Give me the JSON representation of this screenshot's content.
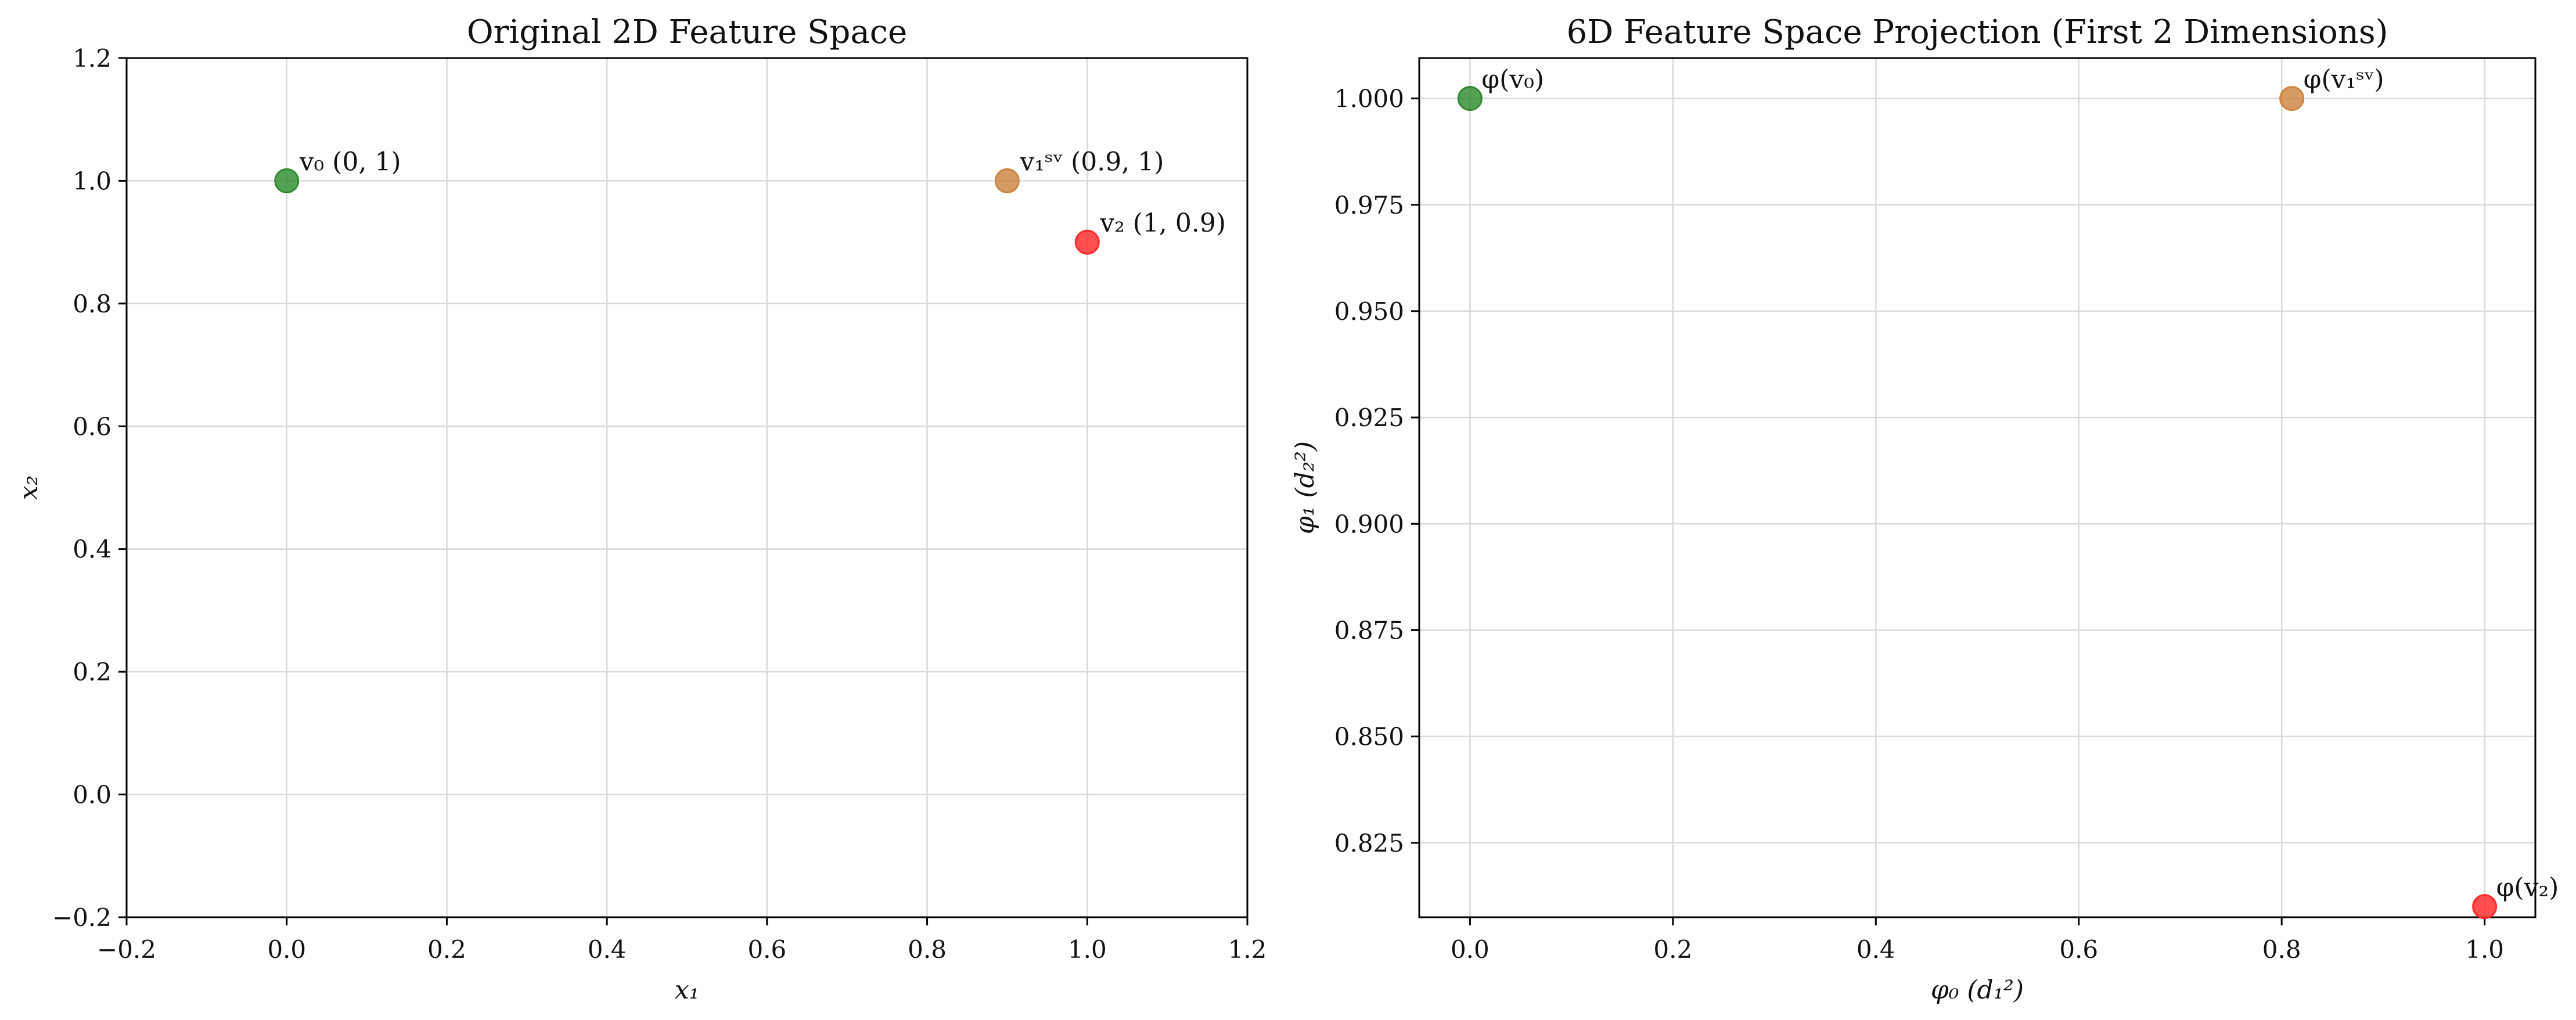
{
  "chart_data": [
    {
      "type": "scatter",
      "title": "Original 2D Feature Space",
      "xlabel": "x₁",
      "ylabel": "x₂",
      "xlim": [
        -0.2,
        1.2
      ],
      "ylim": [
        -0.2,
        1.2
      ],
      "xticks": [
        "−0.2",
        "0.0",
        "0.2",
        "0.4",
        "0.6",
        "0.8",
        "1.0",
        "1.2"
      ],
      "yticks": [
        "−0.2",
        "0.0",
        "0.2",
        "0.4",
        "0.6",
        "0.8",
        "1.0",
        "1.2"
      ],
      "grid": true,
      "points": [
        {
          "x": 0.0,
          "y": 1.0,
          "label": "v₀ (0, 1)",
          "color": "#2e8b2e"
        },
        {
          "x": 0.9,
          "y": 1.0,
          "label": "v₁ˢᵛ (0.9, 1)",
          "color": "#cd853f"
        },
        {
          "x": 1.0,
          "y": 0.9,
          "label": "v₂ (1, 0.9)",
          "color": "#ff2a2a"
        }
      ]
    },
    {
      "type": "scatter",
      "title": "6D Feature Space Projection (First 2 Dimensions)",
      "xlabel": "φ₀ (d₁²)",
      "ylabel": "φ₁ (d₂²)",
      "xlim": [
        -0.05,
        1.05
      ],
      "ylim": [
        0.8075,
        1.0095
      ],
      "xticks": [
        "0.0",
        "0.2",
        "0.4",
        "0.6",
        "0.8",
        "1.0"
      ],
      "yticks": [
        "0.825",
        "0.850",
        "0.875",
        "0.900",
        "0.925",
        "0.950",
        "0.975",
        "1.000"
      ],
      "grid": true,
      "points": [
        {
          "x": 0.0,
          "y": 1.0,
          "label": "φ(v₀)",
          "color": "#2e8b2e"
        },
        {
          "x": 0.81,
          "y": 1.0,
          "label": "φ(v₁ˢᵛ)",
          "color": "#cd853f"
        },
        {
          "x": 1.0,
          "y": 0.81,
          "label": "φ(v₂)",
          "color": "#ff2a2a"
        }
      ]
    }
  ]
}
